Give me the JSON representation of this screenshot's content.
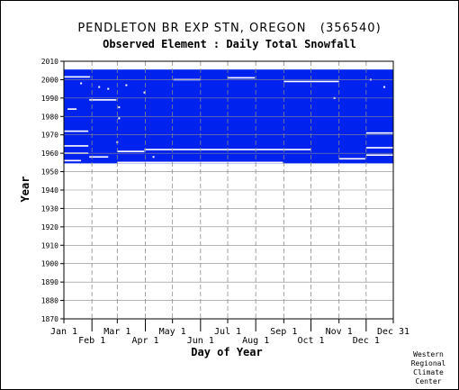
{
  "chart_data": {
    "type": "heatmap",
    "title": "PENDLETON BR EXP STN, OREGON   (356540)",
    "subtitle": "Observed Element : Daily Total Snowfall",
    "xlabel": "Day of Year",
    "ylabel": "Year",
    "ylim": [
      1870,
      2010
    ],
    "xlim": [
      1,
      365
    ],
    "y_ticks": [
      1870,
      1880,
      1890,
      1900,
      1910,
      1920,
      1930,
      1940,
      1950,
      1960,
      1970,
      1980,
      1990,
      2000,
      2010
    ],
    "x_ticks_top_row": [
      {
        "label": "Jan 1",
        "day": 1
      },
      {
        "label": "Mar 1",
        "day": 60
      },
      {
        "label": "May 1",
        "day": 121
      },
      {
        "label": "Jul 1",
        "day": 182
      },
      {
        "label": "Sep 1",
        "day": 244
      },
      {
        "label": "Nov 1",
        "day": 305
      },
      {
        "label": "Dec 31",
        "day": 365
      }
    ],
    "x_ticks_bottom_row": [
      {
        "label": "Feb 1",
        "day": 32
      },
      {
        "label": "Apr 1",
        "day": 91
      },
      {
        "label": "Jun 1",
        "day": 152
      },
      {
        "label": "Aug 1",
        "day": 213
      },
      {
        "label": "Oct 1",
        "day": 274
      },
      {
        "label": "Dec 1",
        "day": 335
      }
    ],
    "grid": true,
    "data_color": "#0022ee",
    "missing_color": "#ffffff",
    "coverage": {
      "start_year": 1955,
      "end_year": 2005
    },
    "missing_segments": [
      {
        "year": 2001.5,
        "day_start": 1,
        "day_end": 30
      },
      {
        "year": 2000,
        "day_start": 122,
        "day_end": 152
      },
      {
        "year": 2001,
        "day_start": 182,
        "day_end": 212
      },
      {
        "year": 1999,
        "day_start": 244,
        "day_end": 305
      },
      {
        "year": 1989,
        "day_start": 29,
        "day_end": 59
      },
      {
        "year": 1984,
        "day_start": 5,
        "day_end": 15
      },
      {
        "year": 1972,
        "day_start": 1,
        "day_end": 28
      },
      {
        "year": 1971,
        "day_start": 335,
        "day_end": 365
      },
      {
        "year": 1964,
        "day_start": 1,
        "day_end": 28
      },
      {
        "year": 1963,
        "day_start": 335,
        "day_end": 365
      },
      {
        "year": 1962,
        "day_start": 90,
        "day_end": 274
      },
      {
        "year": 1961,
        "day_start": 60,
        "day_end": 90
      },
      {
        "year": 1960,
        "day_start": 1,
        "day_end": 28
      },
      {
        "year": 1959,
        "day_start": 335,
        "day_end": 365
      },
      {
        "year": 1958,
        "day_start": 29,
        "day_end": 50
      },
      {
        "year": 1957,
        "day_start": 305,
        "day_end": 334
      },
      {
        "year": 1956,
        "day_start": 1,
        "day_end": 20
      },
      {
        "year": 1955,
        "day_start": 60,
        "day_end": 243
      }
    ],
    "missing_points": [
      {
        "year": 1998,
        "day": 20
      },
      {
        "year": 1996,
        "day": 40
      },
      {
        "year": 1995,
        "day": 50
      },
      {
        "year": 1993,
        "day": 90
      },
      {
        "year": 1990,
        "day": 300
      },
      {
        "year": 1997,
        "day": 70
      },
      {
        "year": 2000,
        "day": 340
      },
      {
        "year": 1996,
        "day": 355
      },
      {
        "year": 1966,
        "day": 60
      },
      {
        "year": 1958,
        "day": 100
      },
      {
        "year": 1985,
        "day": 62
      },
      {
        "year": 1979,
        "day": 62
      }
    ]
  },
  "credit": {
    "line1": "Western",
    "line2": "Regional",
    "line3": "Climate",
    "line4": "Center"
  }
}
